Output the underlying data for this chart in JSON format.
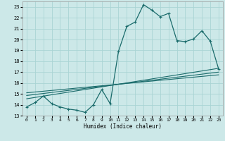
{
  "title": "",
  "xlabel": "Humidex (Indice chaleur)",
  "ylabel": "",
  "bg_color": "#cce8e8",
  "grid_color": "#aad4d4",
  "line_color": "#1a6b6b",
  "xlim": [
    -0.5,
    23.5
  ],
  "ylim": [
    13,
    23.5
  ],
  "xticks": [
    0,
    1,
    2,
    3,
    4,
    5,
    6,
    7,
    8,
    9,
    10,
    11,
    12,
    13,
    14,
    15,
    16,
    17,
    18,
    19,
    20,
    21,
    22,
    23
  ],
  "yticks": [
    13,
    14,
    15,
    16,
    17,
    18,
    19,
    20,
    21,
    22,
    23
  ],
  "line1_x": [
    0,
    1,
    2,
    3,
    4,
    5,
    6,
    7,
    8,
    9,
    10,
    11,
    12,
    13,
    14,
    15,
    16,
    17,
    18,
    19,
    20,
    21,
    22,
    23
  ],
  "line1_y": [
    13.8,
    14.2,
    14.8,
    14.1,
    13.8,
    13.6,
    13.5,
    13.3,
    14.0,
    15.4,
    14.1,
    18.9,
    21.2,
    21.6,
    23.2,
    22.7,
    22.1,
    22.4,
    19.9,
    19.8,
    20.05,
    20.8,
    19.85,
    17.3
  ],
  "line2_x": [
    0,
    23
  ],
  "line2_y": [
    14.55,
    17.35
  ],
  "line3_x": [
    0,
    23
  ],
  "line3_y": [
    14.85,
    17.0
  ],
  "line4_x": [
    0,
    23
  ],
  "line4_y": [
    15.1,
    16.75
  ]
}
